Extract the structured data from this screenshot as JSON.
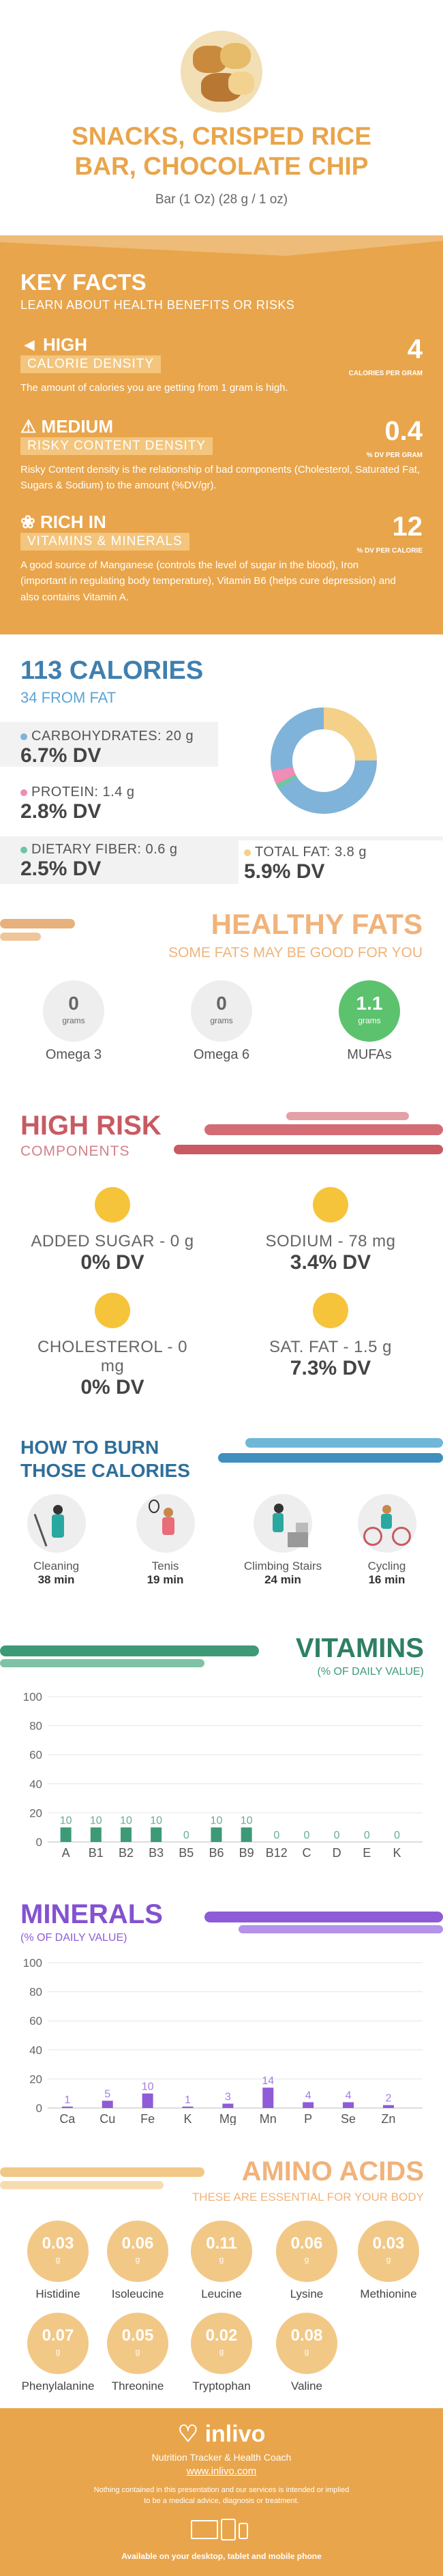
{
  "header": {
    "title_line1": "SNACKS, CRISPED RICE",
    "title_line2": "BAR, CHOCOLATE CHIP",
    "serving": "Bar (1 Oz) (28 g / 1 oz)"
  },
  "key_facts": {
    "title": "KEY FACTS",
    "subtitle": "LEARN ABOUT HEALTH BENEFITS OR RISKS",
    "items": [
      {
        "level": "HIGH",
        "label": "CALORIE DENSITY",
        "value": "4",
        "unit": "CALORIES PER GRAM",
        "desc": "The amount of calories you are getting from 1 gram is high."
      },
      {
        "level": "MEDIUM",
        "label": "RISKY CONTENT DENSITY",
        "value": "0.4",
        "unit": "% DV PER GRAM",
        "desc": "Risky Content density is the relationship of bad components (Cholesterol, Saturated Fat, Sugars & Sodium) to the amount (%DV/gr)."
      },
      {
        "level": "RICH  IN",
        "label": "VITAMINS & MINERALS",
        "value": "12",
        "unit": "% DV PER CALORIE",
        "desc": "A good source of Manganese (controls the level of sugar in the blood), Iron (important in regulating body temperature), Vitamin B6 (helps cure depression) and also contains Vitamin A."
      }
    ]
  },
  "calories": {
    "title": "113 CALORIES",
    "subtitle": "34 FROM FAT",
    "carbs_label": "CARBOHYDRATES: 20 g",
    "carbs_dv": "6.7% DV",
    "protein_label": "PROTEIN: 1.4 g",
    "protein_dv": "2.8% DV",
    "fiber_label": "DIETARY FIBER: 0.6 g",
    "fiber_dv": "2.5% DV",
    "fat_label": "TOTAL FAT: 3.8 g",
    "fat_dv": "5.9% DV",
    "colors": {
      "carbs": "#7fb3d9",
      "protein": "#f08cb5",
      "fiber": "#6cc6a3",
      "fat": "#f5d089"
    }
  },
  "healthy_fats": {
    "title": "HEALTHY FATS",
    "subtitle": "SOME FATS MAY BE GOOD FOR YOU",
    "items": [
      {
        "value": "0",
        "unit": "grams",
        "name": "Omega 3"
      },
      {
        "value": "0",
        "unit": "grams",
        "name": "Omega 6"
      },
      {
        "value": "1.1",
        "unit": "grams",
        "name": "MUFAs"
      }
    ]
  },
  "high_risk": {
    "title": "HIGH RISK",
    "subtitle": "COMPONENTS",
    "items": [
      {
        "label": "ADDED SUGAR - 0 g",
        "dv": "0% DV"
      },
      {
        "label": "SODIUM - 78 mg",
        "dv": "3.4% DV"
      },
      {
        "label": "CHOLESTEROL - 0 mg",
        "dv": "0% DV"
      },
      {
        "label": "SAT. FAT - 1.5 g",
        "dv": "7.3% DV"
      }
    ]
  },
  "burn": {
    "title_line1": "HOW TO BURN",
    "title_line2": "THOSE CALORIES",
    "items": [
      {
        "name": "Cleaning",
        "time": "38 min"
      },
      {
        "name": "Tenis",
        "time": "19 min"
      },
      {
        "name": "Climbing Stairs",
        "time": "24 min"
      },
      {
        "name": "Cycling",
        "time": "16 min"
      }
    ]
  },
  "vitamins": {
    "title": "VITAMINS",
    "subtitle": "(% OF DAILY VALUE)"
  },
  "minerals": {
    "title": "MINERALS",
    "subtitle": "(% OF DAILY VALUE)"
  },
  "chart_data": [
    {
      "type": "bar",
      "categories": [
        "A",
        "B1",
        "B2",
        "B3",
        "B5",
        "B6",
        "B9",
        "B12",
        "C",
        "D",
        "E",
        "K"
      ],
      "values": [
        10,
        10,
        10,
        10,
        0,
        10,
        10,
        0,
        0,
        0,
        0,
        0
      ],
      "ylim": [
        0,
        100
      ],
      "yticks": [
        0,
        20,
        40,
        60,
        80,
        100
      ],
      "color": "#3d9a76"
    },
    {
      "type": "bar",
      "categories": [
        "Ca",
        "Cu",
        "Fe",
        "K",
        "Mg",
        "Mn",
        "P",
        "Se",
        "Zn"
      ],
      "values": [
        1,
        5,
        10,
        1,
        3,
        14,
        4,
        4,
        2
      ],
      "ylim": [
        0,
        100
      ],
      "yticks": [
        0,
        20,
        40,
        60,
        80,
        100
      ],
      "color": "#8f5bd6"
    }
  ],
  "amino": {
    "title": "AMINO ACIDS",
    "subtitle": "THESE ARE ESSENTIAL FOR YOUR BODY",
    "unit": "g",
    "items": [
      {
        "value": "0.03",
        "name": "Histidine"
      },
      {
        "value": "0.06",
        "name": "Isoleucine"
      },
      {
        "value": "0.11",
        "name": "Leucine"
      },
      {
        "value": "0.06",
        "name": "Lysine"
      },
      {
        "value": "0.03",
        "name": "Methionine"
      },
      {
        "value": "0.07",
        "name": "Phenylalanine"
      },
      {
        "value": "0.05",
        "name": "Threonine"
      },
      {
        "value": "0.02",
        "name": "Tryptophan"
      },
      {
        "value": "0.08",
        "name": "Valine"
      }
    ]
  },
  "footer": {
    "brand": "inlivo",
    "tagline": "Nutrition Tracker & Health Coach",
    "url": "www.inlivo.com",
    "disclaimer_line1": "Nothing contained in this presentation and our services is intended or implied",
    "disclaimer_line2": "to be a medical advice, diagnosis or treatment.",
    "platforms": "Available on your desktop, tablet and mobile phone"
  }
}
